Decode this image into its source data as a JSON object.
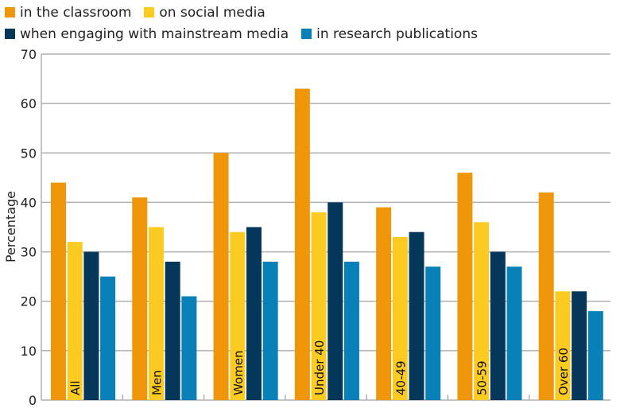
{
  "chart_data": {
    "type": "bar",
    "title": "",
    "xlabel": "",
    "ylabel": "Percentage",
    "ylim": [
      0,
      70
    ],
    "yticks": [
      0,
      10,
      20,
      30,
      40,
      50,
      60,
      70
    ],
    "grid": true,
    "legend_position": "top-left",
    "categories": [
      "All",
      "Men",
      "Women",
      "Under 40",
      "40-49",
      "50-59",
      "Over 60"
    ],
    "series": [
      {
        "name": "in the classroom",
        "color": "#F0960A",
        "values": [
          44,
          41,
          50,
          63,
          39,
          46,
          42
        ]
      },
      {
        "name": "on social media",
        "color": "#FCCB22",
        "values": [
          32,
          35,
          34,
          38,
          33,
          36,
          22
        ]
      },
      {
        "name": "when engaging with mainstream media",
        "color": "#05375A",
        "values": [
          30,
          28,
          35,
          40,
          34,
          30,
          22
        ]
      },
      {
        "name": "in research publications",
        "color": "#0A80B8",
        "values": [
          25,
          21,
          28,
          28,
          27,
          27,
          18
        ]
      }
    ]
  }
}
